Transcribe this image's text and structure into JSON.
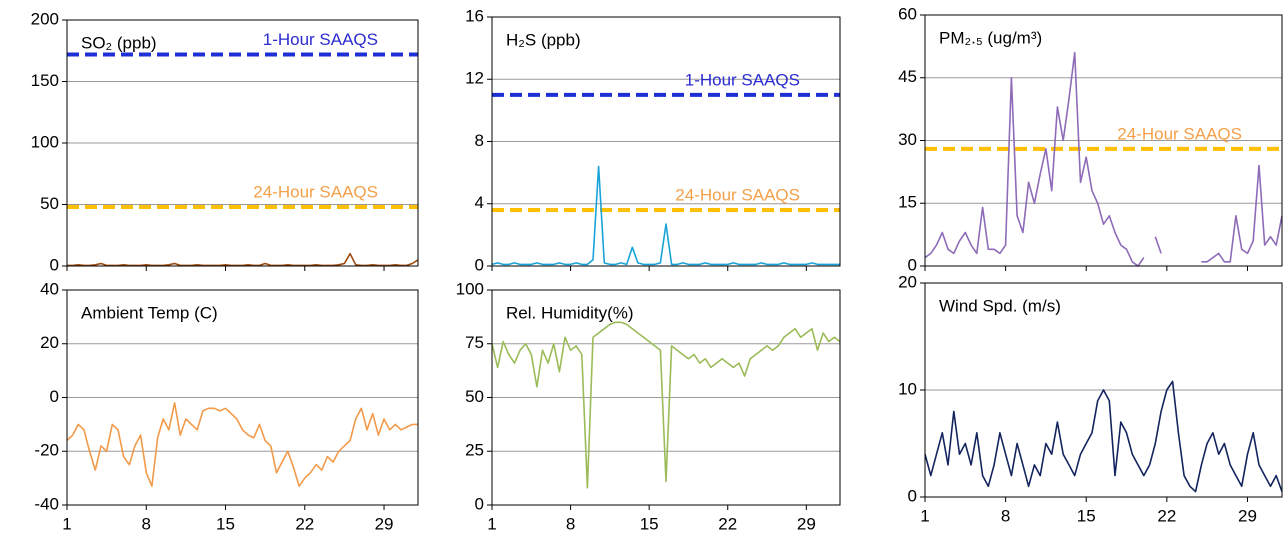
{
  "chart_data": [
    {
      "type": "line",
      "title": "SO₂ (ppb)",
      "ylim": [
        0,
        200
      ],
      "yticks": [
        0,
        50,
        100,
        150,
        200
      ],
      "grid": true,
      "xlim": [
        1,
        32
      ],
      "xticks": [
        1,
        8,
        15,
        22,
        29
      ],
      "xtick_labels": false,
      "reference_lines": [
        {
          "label": "1-Hour SAAQS",
          "value": 172,
          "color": "#1f2fd6",
          "label_color": "#2b2bd0"
        },
        {
          "label": "24-Hour SAAQS",
          "value": 48,
          "color": "#ffc000",
          "label_color": "#f4a04a"
        }
      ],
      "x": [
        1,
        1.5,
        2,
        2.5,
        3,
        3.5,
        4,
        4.5,
        5,
        5.5,
        6,
        6.5,
        7,
        7.5,
        8,
        8.5,
        9,
        9.5,
        10,
        10.5,
        11,
        11.5,
        12,
        12.5,
        13,
        13.5,
        14,
        14.5,
        15,
        15.5,
        16,
        16.5,
        17,
        17.5,
        18,
        18.5,
        19,
        19.5,
        20,
        20.5,
        21,
        21.5,
        22,
        22.5,
        23,
        23.5,
        24,
        24.5,
        25,
        25.5,
        26,
        26.5,
        27,
        27.5,
        28,
        28.5,
        29,
        29.5,
        30,
        30.5,
        31,
        31.5,
        32
      ],
      "series": [
        {
          "name": "SO₂",
          "color": "#9c4a0e",
          "values": [
            0.5,
            0.5,
            1,
            0.5,
            0.5,
            1,
            2,
            0.5,
            0.5,
            0.5,
            1,
            0.5,
            0.5,
            0.5,
            1,
            0.5,
            0.5,
            0.5,
            1,
            2,
            0.5,
            0.5,
            0.5,
            1,
            0.5,
            0.5,
            0.5,
            0.5,
            1,
            0.5,
            0.5,
            0.5,
            1,
            0.5,
            0.5,
            2,
            0.5,
            0.5,
            0.5,
            1,
            0.5,
            0.5,
            0.5,
            0.5,
            1,
            0.5,
            0.5,
            0.5,
            1,
            2,
            10,
            1,
            0.5,
            0.5,
            1,
            0.5,
            0.5,
            0.5,
            1,
            0.5,
            0.5,
            2,
            5
          ]
        }
      ]
    },
    {
      "type": "line",
      "title": "H₂S  (ppb)",
      "ylim": [
        0,
        16
      ],
      "yticks": [
        0,
        4,
        8,
        12,
        16
      ],
      "grid": true,
      "xlim": [
        1,
        32
      ],
      "xticks": [
        1,
        8,
        15,
        22,
        29
      ],
      "xtick_labels": false,
      "reference_lines": [
        {
          "label": "1-Hour SAAQS",
          "value": 11,
          "color": "#1f2fd6",
          "label_color": "#2b2bd0"
        },
        {
          "label": "24-Hour SAAQS",
          "value": 3.6,
          "color": "#ffc000",
          "label_color": "#f4a04a"
        }
      ],
      "x": [
        1,
        1.5,
        2,
        2.5,
        3,
        3.5,
        4,
        4.5,
        5,
        5.5,
        6,
        6.5,
        7,
        7.5,
        8,
        8.5,
        9,
        9.5,
        10,
        10.5,
        11,
        11.5,
        12,
        12.5,
        13,
        13.5,
        14,
        14.5,
        15,
        15.5,
        16,
        16.5,
        17,
        17.5,
        18,
        18.5,
        19,
        19.5,
        20,
        20.5,
        21,
        21.5,
        22,
        22.5,
        23,
        23.5,
        24,
        24.5,
        25,
        25.5,
        26,
        26.5,
        27,
        27.5,
        28,
        28.5,
        29,
        29.5,
        30,
        30.5,
        31,
        31.5,
        32
      ],
      "series": [
        {
          "name": "H₂S",
          "color": "#1aa3d9",
          "values": [
            0.1,
            0.2,
            0.1,
            0.1,
            0.2,
            0.1,
            0.1,
            0.1,
            0.2,
            0.1,
            0.1,
            0.1,
            0.2,
            0.1,
            0.1,
            0.2,
            0.1,
            0.1,
            0.4,
            6.4,
            0.2,
            0.1,
            0.1,
            0.2,
            0.1,
            1.2,
            0.2,
            0.1,
            0.1,
            0.1,
            0.2,
            2.7,
            0.1,
            0.1,
            0.2,
            0.1,
            0.1,
            0.1,
            0.2,
            0.1,
            0.1,
            0.1,
            0.1,
            0.2,
            0.1,
            0.1,
            0.1,
            0.1,
            0.2,
            0.1,
            0.1,
            0.1,
            0.2,
            0.1,
            0.1,
            0.1,
            0.1,
            0.2,
            0.1,
            0.1,
            0.1,
            0.1,
            0.1
          ]
        }
      ]
    },
    {
      "type": "line",
      "title": "PM₂.₅ (ug/m³)",
      "ylim": [
        0,
        60
      ],
      "yticks": [
        0,
        15,
        30,
        45,
        60
      ],
      "grid": true,
      "xlim": [
        1,
        32
      ],
      "xticks": [
        1,
        8,
        15,
        22,
        29
      ],
      "xtick_labels": false,
      "reference_lines": [
        {
          "label": "24-Hour SAAQS",
          "value": 28,
          "color": "#ffc000",
          "label_color": "#f4a04a"
        }
      ],
      "x": [
        1,
        1.5,
        2,
        2.5,
        3,
        3.5,
        4,
        4.5,
        5,
        5.5,
        6,
        6.5,
        7,
        7.5,
        8,
        8.5,
        9,
        9.5,
        10,
        10.5,
        11,
        11.5,
        12,
        12.5,
        13,
        13.5,
        14,
        14.5,
        15,
        15.5,
        16,
        16.5,
        17,
        17.5,
        18,
        18.5,
        19,
        19.5,
        20,
        20.5,
        21,
        21.5,
        22,
        22.5,
        23,
        23.5,
        24,
        24.5,
        25,
        25.5,
        26,
        26.5,
        27,
        27.5,
        28,
        28.5,
        29,
        29.5,
        30,
        30.5,
        31,
        31.5,
        32
      ],
      "series": [
        {
          "name": "PM₂.₅",
          "color": "#8e6bb8",
          "values": [
            2,
            3,
            5,
            8,
            4,
            3,
            6,
            8,
            5,
            3,
            14,
            4,
            4,
            3,
            5,
            45,
            12,
            8,
            20,
            15,
            22,
            28,
            18,
            38,
            30,
            40,
            51,
            20,
            26,
            18,
            15,
            10,
            12,
            8,
            5,
            4,
            1,
            0,
            2,
            null,
            7,
            3,
            null,
            null,
            null,
            null,
            null,
            null,
            1,
            1,
            2,
            3,
            1,
            1,
            12,
            4,
            3,
            6,
            24,
            5,
            7,
            5,
            12
          ]
        }
      ]
    },
    {
      "type": "line",
      "title": "Ambient Temp (C)",
      "ylim": [
        -40,
        40
      ],
      "yticks": [
        -40,
        -20,
        0,
        20,
        40
      ],
      "grid": true,
      "xlim": [
        1,
        32
      ],
      "xticks": [
        1,
        8,
        15,
        22,
        29
      ],
      "xtick_labels": true,
      "x": [
        1,
        1.5,
        2,
        2.5,
        3,
        3.5,
        4,
        4.5,
        5,
        5.5,
        6,
        6.5,
        7,
        7.5,
        8,
        8.5,
        9,
        9.5,
        10,
        10.5,
        11,
        11.5,
        12,
        12.5,
        13,
        13.5,
        14,
        14.5,
        15,
        15.5,
        16,
        16.5,
        17,
        17.5,
        18,
        18.5,
        19,
        19.5,
        20,
        20.5,
        21,
        21.5,
        22,
        22.5,
        23,
        23.5,
        24,
        24.5,
        25,
        25.5,
        26,
        26.5,
        27,
        27.5,
        28,
        28.5,
        29,
        29.5,
        30,
        30.5,
        31,
        31.5,
        32
      ],
      "series": [
        {
          "name": "Ambient Temp",
          "color": "#f29a4a",
          "values": [
            -16,
            -14,
            -10,
            -12,
            -20,
            -27,
            -18,
            -20,
            -10,
            -12,
            -22,
            -25,
            -18,
            -14,
            -28,
            -33,
            -15,
            -8,
            -12,
            -2,
            -14,
            -8,
            -10,
            -12,
            -5,
            -4,
            -4,
            -5,
            -4,
            -6,
            -8,
            -12,
            -14,
            -15,
            -10,
            -16,
            -18,
            -28,
            -24,
            -20,
            -26,
            -33,
            -30,
            -28,
            -25,
            -27,
            -22,
            -24,
            -20,
            -18,
            -16,
            -8,
            -4,
            -12,
            -6,
            -14,
            -8,
            -12,
            -10,
            -12,
            -11,
            -10,
            -10
          ]
        }
      ]
    },
    {
      "type": "line",
      "title": "Rel. Humidity(%)",
      "ylim": [
        0,
        100
      ],
      "yticks": [
        0,
        25,
        50,
        75,
        100
      ],
      "grid": true,
      "xlim": [
        1,
        32
      ],
      "xticks": [
        1,
        8,
        15,
        22,
        29
      ],
      "xtick_labels": true,
      "x": [
        1,
        1.5,
        2,
        2.5,
        3,
        3.5,
        4,
        4.5,
        5,
        5.5,
        6,
        6.5,
        7,
        7.5,
        8,
        8.5,
        9,
        9.5,
        10,
        10.5,
        11,
        11.5,
        12,
        12.5,
        13,
        13.5,
        14,
        14.5,
        15,
        15.5,
        16,
        16.5,
        17,
        17.5,
        18,
        18.5,
        19,
        19.5,
        20,
        20.5,
        21,
        21.5,
        22,
        22.5,
        23,
        23.5,
        24,
        24.5,
        25,
        25.5,
        26,
        26.5,
        27,
        27.5,
        28,
        28.5,
        29,
        29.5,
        30,
        30.5,
        31,
        31.5,
        32
      ],
      "series": [
        {
          "name": "Rel. Humidity",
          "color": "#9bbb59",
          "values": [
            75,
            64,
            76,
            70,
            66,
            72,
            75,
            70,
            55,
            72,
            66,
            75,
            62,
            78,
            72,
            74,
            70,
            8,
            78,
            80,
            82,
            84,
            85,
            85,
            84,
            82,
            80,
            78,
            76,
            74,
            72,
            11,
            74,
            72,
            70,
            68,
            70,
            66,
            68,
            64,
            66,
            68,
            66,
            64,
            66,
            60,
            68,
            70,
            72,
            74,
            72,
            74,
            78,
            80,
            82,
            78,
            80,
            82,
            72,
            80,
            76,
            78,
            76
          ]
        }
      ]
    },
    {
      "type": "line",
      "title": "Wind Spd. (m/s)",
      "ylim": [
        0,
        20
      ],
      "yticks": [
        0,
        10,
        20
      ],
      "grid": true,
      "xlim": [
        1,
        32
      ],
      "xticks": [
        1,
        8,
        15,
        22,
        29
      ],
      "xtick_labels": true,
      "x": [
        1,
        1.5,
        2,
        2.5,
        3,
        3.5,
        4,
        4.5,
        5,
        5.5,
        6,
        6.5,
        7,
        7.5,
        8,
        8.5,
        9,
        9.5,
        10,
        10.5,
        11,
        11.5,
        12,
        12.5,
        13,
        13.5,
        14,
        14.5,
        15,
        15.5,
        16,
        16.5,
        17,
        17.5,
        18,
        18.5,
        19,
        19.5,
        20,
        20.5,
        21,
        21.5,
        22,
        22.5,
        23,
        23.5,
        24,
        24.5,
        25,
        25.5,
        26,
        26.5,
        27,
        27.5,
        28,
        28.5,
        29,
        29.5,
        30,
        30.5,
        31,
        31.5,
        32
      ],
      "series": [
        {
          "name": "Wind Spd.",
          "color": "#13245e",
          "values": [
            4,
            2,
            4,
            6,
            3,
            8,
            4,
            5,
            3,
            6,
            2,
            1,
            3,
            6,
            4,
            2,
            5,
            3,
            1,
            3,
            2,
            5,
            4,
            7,
            4,
            3,
            2,
            4,
            5,
            6,
            9,
            10,
            9,
            2,
            7,
            6,
            4,
            3,
            2,
            3,
            5,
            8,
            10,
            10.8,
            6,
            2,
            1,
            0.5,
            3,
            5,
            6,
            4,
            5,
            3,
            2,
            1,
            4,
            6,
            3,
            2,
            1,
            2,
            0.5
          ]
        }
      ]
    }
  ]
}
